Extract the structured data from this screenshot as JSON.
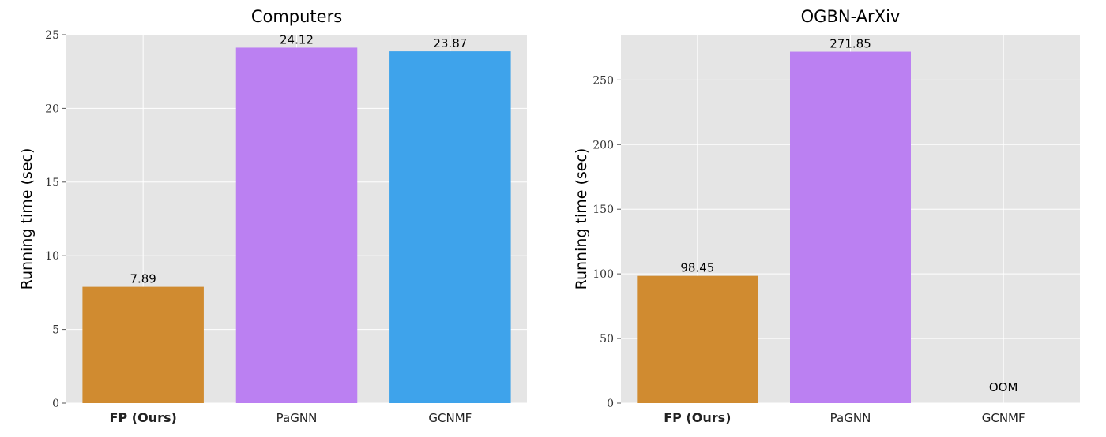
{
  "chart_data": [
    {
      "type": "bar",
      "title": "Computers",
      "xlabel": "",
      "ylabel": "Running time (sec)",
      "categories": [
        "FP (Ours)",
        "PaGNN",
        "GCNMF"
      ],
      "bold_categories": [
        "FP (Ours)"
      ],
      "values": [
        7.89,
        24.12,
        23.87
      ],
      "data_labels": [
        "7.89",
        "24.12",
        "23.87"
      ],
      "colors": [
        "#d08b30",
        "#bb80f2",
        "#3ea3eb"
      ],
      "ylim": [
        0,
        25
      ],
      "yticks": [
        0,
        5,
        10,
        15,
        20,
        25
      ],
      "grid": true,
      "background": "#e5e5e5"
    },
    {
      "type": "bar",
      "title": "OGBN-ArXiv",
      "xlabel": "",
      "ylabel": "Running time (sec)",
      "categories": [
        "FP (Ours)",
        "PaGNN",
        "GCNMF"
      ],
      "bold_categories": [
        "FP (Ours)"
      ],
      "values": [
        98.45,
        271.85,
        null
      ],
      "data_labels": [
        "98.45",
        "271.85",
        "OOM"
      ],
      "colors": [
        "#d08b30",
        "#bb80f2",
        "#3ea3eb"
      ],
      "ylim": [
        0,
        285
      ],
      "yticks": [
        0,
        50,
        100,
        150,
        200,
        250
      ],
      "grid": true,
      "background": "#e5e5e5"
    }
  ]
}
